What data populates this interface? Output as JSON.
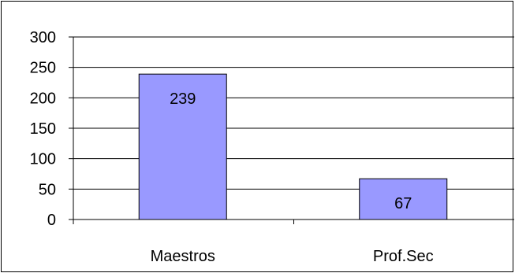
{
  "chart_data": {
    "type": "bar",
    "title": "",
    "xlabel": "",
    "ylabel": "",
    "categories": [
      "Maestros",
      "Prof.Sec"
    ],
    "values": [
      239,
      67
    ],
    "data_labels": [
      "239",
      "67"
    ],
    "ylim": [
      0,
      300
    ],
    "yticks": [
      0,
      50,
      100,
      150,
      200,
      250,
      300
    ],
    "grid": true,
    "legend": "none",
    "colors": {
      "bar_fill": "#9999FF",
      "bar_stroke": "#000000",
      "grid": "#000000"
    }
  }
}
